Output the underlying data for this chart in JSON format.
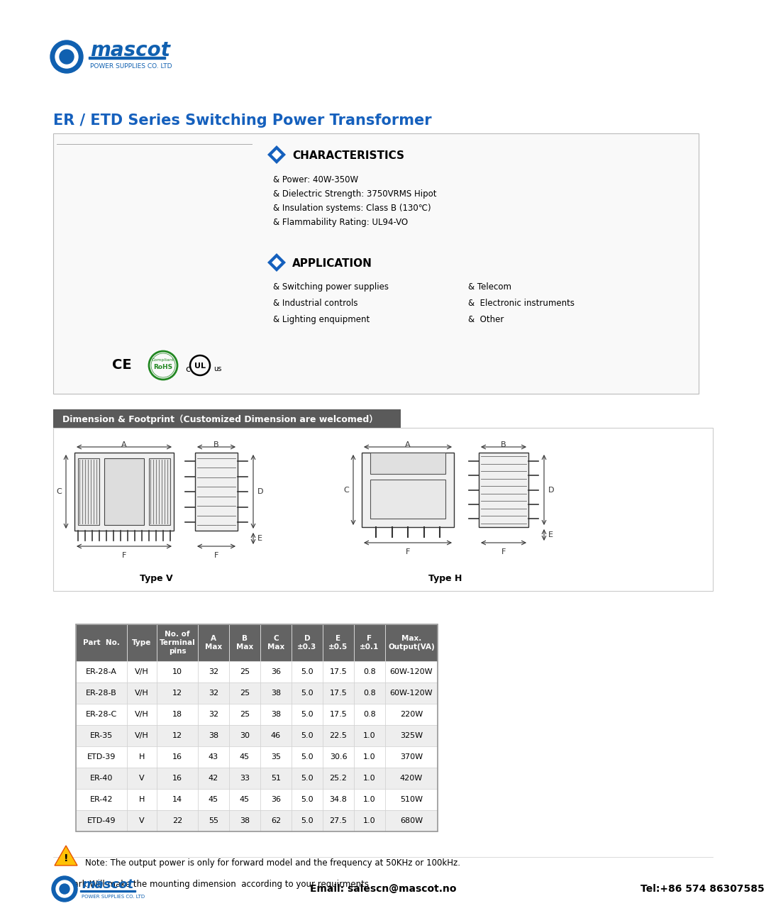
{
  "title": "ER / ETD Series Switching Power Transformer",
  "title_color": "#1560bd",
  "bg_color": "#ffffff",
  "section1_title": "CHARACTERISTICS",
  "characteristics": [
    "& Power: 40W-350W",
    "& Dielectric Strength: 3750VRMS Hipot",
    "& Insulation systems: Class B (130℃)",
    "& Flammability Rating: UL94-VO"
  ],
  "section2_title": "APPLICATION",
  "application_left": [
    "& Switching power supplies",
    "& Industrial controls",
    "& Lighting enquipment"
  ],
  "application_right": [
    "& Telecom",
    "&  Electronic instruments",
    "&  Other"
  ],
  "dimension_title": "Dimension & Footprint（Customized Dimension are welcomed）",
  "type_v_label": "Type V",
  "type_h_label": "Type H",
  "table_headers": [
    "Part  No.",
    "Type",
    "No. of\nTerminal\npins",
    "A\nMax",
    "B\nMax",
    "C\nMax",
    "D\n±0.3",
    "E\n±0.5",
    "F\n±0.1",
    "Max.\nOutput(VA)"
  ],
  "table_data": [
    [
      "ER-28-A",
      "V/H",
      "10",
      "32",
      "25",
      "36",
      "5.0",
      "17.5",
      "0.8",
      "60W-120W"
    ],
    [
      "ER-28-B",
      "V/H",
      "12",
      "32",
      "25",
      "38",
      "5.0",
      "17.5",
      "0.8",
      "60W-120W"
    ],
    [
      "ER-28-C",
      "V/H",
      "18",
      "32",
      "25",
      "38",
      "5.0",
      "17.5",
      "0.8",
      "220W"
    ],
    [
      "ER-35",
      "V/H",
      "12",
      "38",
      "30",
      "46",
      "5.0",
      "22.5",
      "1.0",
      "325W"
    ],
    [
      "ETD-39",
      "H",
      "16",
      "43",
      "45",
      "35",
      "5.0",
      "30.6",
      "1.0",
      "370W"
    ],
    [
      "ER-40",
      "V",
      "16",
      "42",
      "33",
      "51",
      "5.0",
      "25.2",
      "1.0",
      "420W"
    ],
    [
      "ER-42",
      "H",
      "14",
      "45",
      "45",
      "36",
      "5.0",
      "34.8",
      "1.0",
      "510W"
    ],
    [
      "ETD-49",
      "V",
      "22",
      "55",
      "38",
      "62",
      "5.0",
      "27.5",
      "1.0",
      "680W"
    ]
  ],
  "note_text": "Note: The output power is only for forward model and the frequency at 50KHz or 100kHz.",
  "remark_text": "Remark Will make the mounting dimension  according to your requirments",
  "email_text": "Email: salescn@mascot.no",
  "tel_text": "Tel:+86 574 86307585",
  "header_bg": "#636363",
  "header_fg": "#ffffff",
  "row_bg1": "#ffffff",
  "row_bg2": "#eeeeee",
  "table_border": "#999999",
  "outer_box_color": "#cccccc",
  "dim_header_bg": "#5a5a5a"
}
